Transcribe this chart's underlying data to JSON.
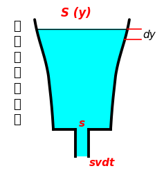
{
  "bg_color": "#ffffff",
  "water_color": "#00ffff",
  "vessel_edge_color": "#000000",
  "label_color_red": "#ff0000",
  "label_color_black": "#000000",
  "label_Sy": "S (y)",
  "label_dy": "dy",
  "label_s": "s",
  "label_svdt": "svdt",
  "japanese_chars": [
    "任",
    "意",
    "の",
    "形",
    "の",
    "容",
    "器"
  ],
  "figsize": [
    2.37,
    2.51
  ],
  "dpi": 100
}
